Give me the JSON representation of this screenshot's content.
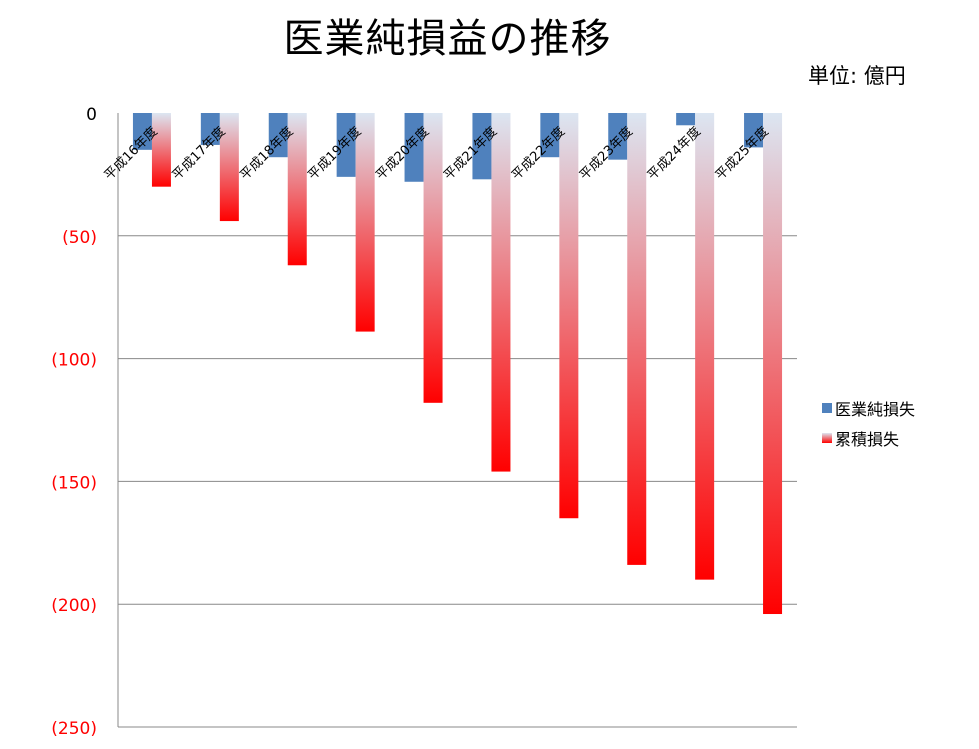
{
  "chart_data": {
    "type": "bar",
    "title": "医業純損益の推移",
    "unit_label": "単位: 億円",
    "categories": [
      "平成16年度",
      "平成17年度",
      "平成18年度",
      "平成19年度",
      "平成20年度",
      "平成21年度",
      "平成22年度",
      "平成23年度",
      "平成24年度",
      "平成25年度"
    ],
    "series": [
      {
        "name": "医業純損失",
        "values": [
          -15,
          -13,
          -18,
          -26,
          -28,
          -27,
          -18,
          -19,
          -5,
          -14
        ],
        "color": "#4f81bd"
      },
      {
        "name": "累積損失",
        "values": [
          -30,
          -44,
          -62,
          -89,
          -118,
          -146,
          -165,
          -184,
          -190,
          -204
        ],
        "color_top": "#dce6f2",
        "color_bottom": "#ff0000"
      }
    ],
    "ylim": [
      -250,
      0
    ],
    "yticks": [
      0,
      -50,
      -100,
      -150,
      -200,
      -250
    ],
    "ytick_labels": [
      "0",
      "(50)",
      "(100)",
      "(150)",
      "(200)",
      "(250)"
    ],
    "ytick_colors": [
      "#000000",
      "#ff0000",
      "#ff0000",
      "#ff0000",
      "#ff0000",
      "#ff0000"
    ],
    "grid": true,
    "legend_position": "right"
  }
}
